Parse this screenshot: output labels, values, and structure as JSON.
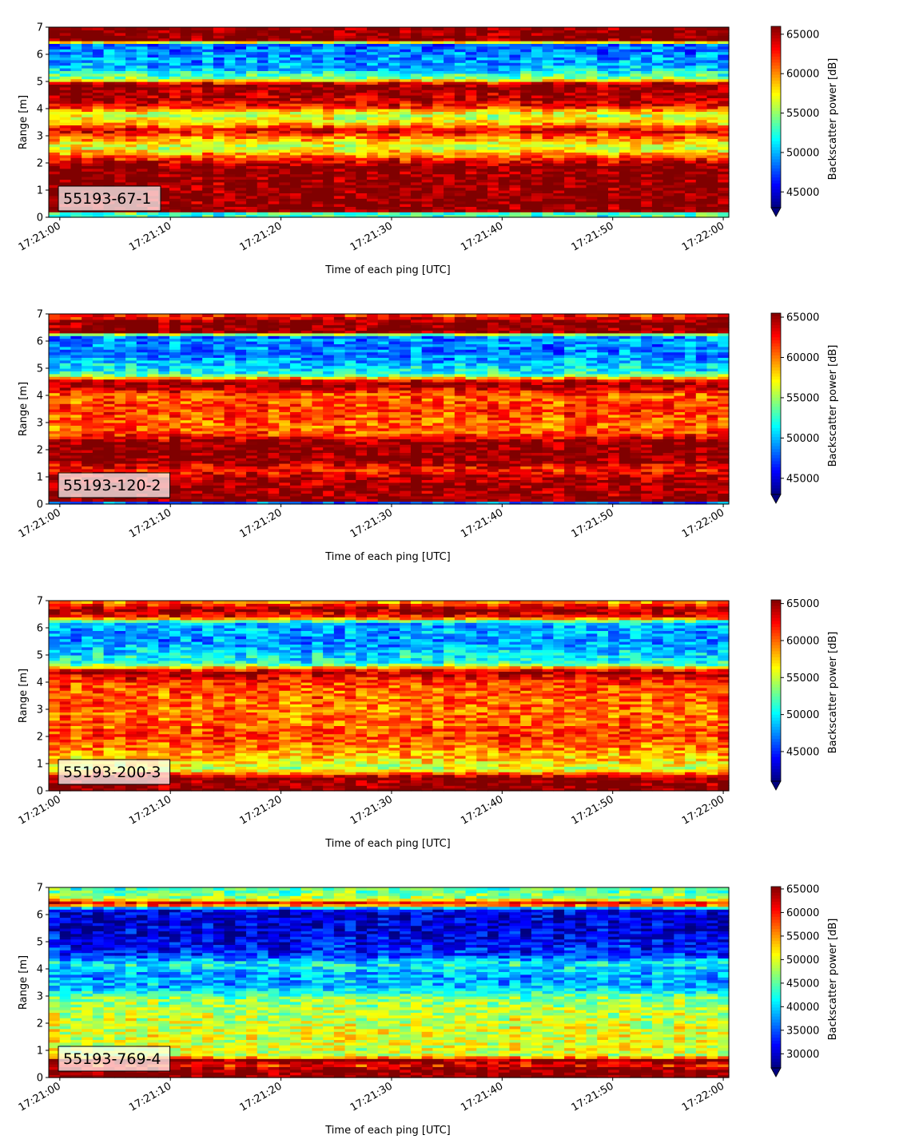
{
  "chart_data": [
    {
      "type": "heatmap",
      "label_box": "55193-67-1",
      "xlabel": "Time of each ping [UTC]",
      "ylabel": "Range [m]",
      "colorbar_label": "Backscatter power [dB]",
      "colormap": "jet",
      "x_range": [
        "17:20:59",
        "17:22:00.5"
      ],
      "xticks": [
        "17:21:00",
        "17:21:10",
        "17:21:20",
        "17:21:30",
        "17:21:40",
        "17:21:50",
        "17:22:00"
      ],
      "ylim": [
        0,
        7
      ],
      "yticks": [
        "0",
        "1",
        "2",
        "3",
        "4",
        "5",
        "6",
        "7"
      ],
      "clim": [
        43000,
        66000
      ],
      "cbar_ticks": [
        45000,
        50000,
        55000,
        60000,
        65000
      ],
      "cbar_ticklabels": [
        "45000",
        "50000",
        "55000",
        "60000",
        "65000"
      ],
      "profile": [
        {
          "range": 0.2,
          "value": 53000
        },
        {
          "range": 0.25,
          "value": 66000
        },
        {
          "range": 1.9,
          "value": 66000
        },
        {
          "range": 2.1,
          "value": 63000
        },
        {
          "range": 2.3,
          "value": 60000
        },
        {
          "range": 2.6,
          "value": 56000
        },
        {
          "range": 3.0,
          "value": 61000
        },
        {
          "range": 3.2,
          "value": 64000
        },
        {
          "range": 3.5,
          "value": 58000
        },
        {
          "range": 3.8,
          "value": 56000
        },
        {
          "range": 4.1,
          "value": 63000
        },
        {
          "range": 4.4,
          "value": 65000
        },
        {
          "range": 4.9,
          "value": 66000
        },
        {
          "range": 5.1,
          "value": 55000
        },
        {
          "range": 5.5,
          "value": 50000
        },
        {
          "range": 6.0,
          "value": 49000
        },
        {
          "range": 6.4,
          "value": 48000
        },
        {
          "range": 6.5,
          "value": 66000
        },
        {
          "range": 7.0,
          "value": 66000
        }
      ]
    },
    {
      "type": "heatmap",
      "label_box": "55193-120-2",
      "xlabel": "Time of each ping [UTC]",
      "ylabel": "Range [m]",
      "colorbar_label": "Backscatter power [dB]",
      "colormap": "jet",
      "x_range": [
        "17:20:59",
        "17:22:00.5"
      ],
      "xticks": [
        "17:21:00",
        "17:21:10",
        "17:21:20",
        "17:21:30",
        "17:21:40",
        "17:21:50",
        "17:22:00"
      ],
      "ylim": [
        0,
        7
      ],
      "yticks": [
        "0",
        "1",
        "2",
        "3",
        "4",
        "5",
        "6",
        "7"
      ],
      "clim": [
        43000,
        65500
      ],
      "cbar_ticks": [
        45000,
        50000,
        55000,
        60000,
        65000
      ],
      "cbar_ticklabels": [
        "45000",
        "50000",
        "55000",
        "60000",
        "65000"
      ],
      "profile": [
        {
          "range": 0.05,
          "value": 48000
        },
        {
          "range": 0.15,
          "value": 65500
        },
        {
          "range": 1.0,
          "value": 64500
        },
        {
          "range": 1.3,
          "value": 62000
        },
        {
          "range": 1.6,
          "value": 65500
        },
        {
          "range": 2.3,
          "value": 65500
        },
        {
          "range": 2.6,
          "value": 61000
        },
        {
          "range": 3.0,
          "value": 60500
        },
        {
          "range": 3.5,
          "value": 61500
        },
        {
          "range": 4.0,
          "value": 60500
        },
        {
          "range": 4.3,
          "value": 64000
        },
        {
          "range": 4.5,
          "value": 65500
        },
        {
          "range": 4.8,
          "value": 52000
        },
        {
          "range": 5.5,
          "value": 48500
        },
        {
          "range": 6.2,
          "value": 49000
        },
        {
          "range": 6.35,
          "value": 65500
        },
        {
          "range": 6.7,
          "value": 65500
        },
        {
          "range": 7.0,
          "value": 61000
        }
      ]
    },
    {
      "type": "heatmap",
      "label_box": "55193-200-3",
      "xlabel": "Time of each ping [UTC]",
      "ylabel": "Range [m]",
      "colorbar_label": "Backscatter power [dB]",
      "colormap": "jet",
      "x_range": [
        "17:20:59",
        "17:22:00.5"
      ],
      "xticks": [
        "17:21:00",
        "17:21:10",
        "17:21:20",
        "17:21:30",
        "17:21:40",
        "17:21:50",
        "17:22:00"
      ],
      "ylim": [
        0,
        7
      ],
      "yticks": [
        "0",
        "1",
        "2",
        "3",
        "4",
        "5",
        "6",
        "7"
      ],
      "clim": [
        41000,
        65500
      ],
      "cbar_ticks": [
        45000,
        50000,
        55000,
        60000,
        65000
      ],
      "cbar_ticklabels": [
        "45000",
        "50000",
        "55000",
        "60000",
        "65000"
      ],
      "profile": [
        {
          "range": 0.1,
          "value": 65500
        },
        {
          "range": 0.5,
          "value": 65500
        },
        {
          "range": 0.8,
          "value": 55000
        },
        {
          "range": 1.1,
          "value": 57000
        },
        {
          "range": 1.5,
          "value": 59000
        },
        {
          "range": 2.0,
          "value": 61000
        },
        {
          "range": 2.5,
          "value": 60000
        },
        {
          "range": 3.0,
          "value": 59500
        },
        {
          "range": 3.5,
          "value": 60000
        },
        {
          "range": 4.0,
          "value": 61000
        },
        {
          "range": 4.4,
          "value": 64500
        },
        {
          "range": 4.7,
          "value": 51000
        },
        {
          "range": 5.5,
          "value": 47500
        },
        {
          "range": 6.2,
          "value": 48500
        },
        {
          "range": 6.4,
          "value": 62000
        },
        {
          "range": 6.7,
          "value": 65000
        },
        {
          "range": 7.0,
          "value": 58000
        }
      ]
    },
    {
      "type": "heatmap",
      "label_box": "55193-769-4",
      "xlabel": "Time of each ping [UTC]",
      "ylabel": "Range [m]",
      "colorbar_label": "Backscatter power [dB]",
      "colormap": "jet",
      "x_range": [
        "17:20:59",
        "17:22:00.5"
      ],
      "xticks": [
        "17:21:00",
        "17:21:10",
        "17:21:20",
        "17:21:30",
        "17:21:40",
        "17:21:50",
        "17:22:00"
      ],
      "ylim": [
        0,
        7
      ],
      "yticks": [
        "0",
        "1",
        "2",
        "3",
        "4",
        "5",
        "6",
        "7"
      ],
      "clim": [
        27000,
        65500
      ],
      "cbar_ticks": [
        30000,
        35000,
        40000,
        45000,
        50000,
        55000,
        60000,
        65000
      ],
      "cbar_ticklabels": [
        "30000",
        "35000",
        "40000",
        "45000",
        "50000",
        "55000",
        "60000",
        "65000"
      ],
      "profile": [
        {
          "range": 0.05,
          "value": 65500
        },
        {
          "range": 0.3,
          "value": 65500
        },
        {
          "range": 0.45,
          "value": 60000
        },
        {
          "range": 0.65,
          "value": 65500
        },
        {
          "range": 0.8,
          "value": 49000
        },
        {
          "range": 1.5,
          "value": 50000
        },
        {
          "range": 2.5,
          "value": 48500
        },
        {
          "range": 3.0,
          "value": 46000
        },
        {
          "range": 3.3,
          "value": 39000
        },
        {
          "range": 3.8,
          "value": 38000
        },
        {
          "range": 4.2,
          "value": 42000
        },
        {
          "range": 4.5,
          "value": 34000
        },
        {
          "range": 5.5,
          "value": 30000
        },
        {
          "range": 6.2,
          "value": 31000
        },
        {
          "range": 6.4,
          "value": 65000
        },
        {
          "range": 6.6,
          "value": 48000
        },
        {
          "range": 7.0,
          "value": 44000
        }
      ]
    }
  ]
}
